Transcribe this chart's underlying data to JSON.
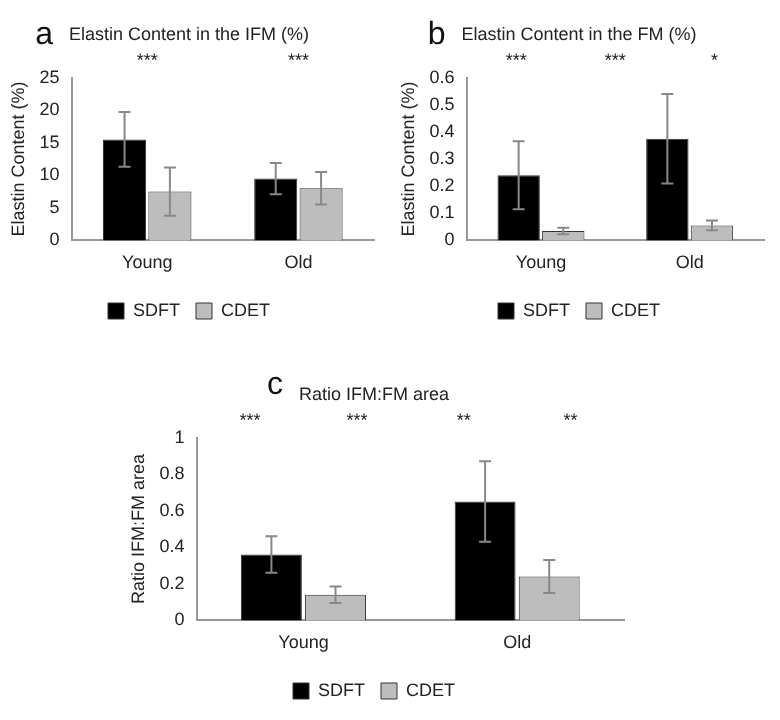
{
  "chart_data": [
    {
      "type": "bar",
      "title": "Elastin Content in the IFM (%)",
      "subtitle": "a",
      "ylabel": "Elastin Content (%)",
      "categories": [
        "Young",
        "Old"
      ],
      "series": [
        {
          "name": "SDFT",
          "color": "#000000",
          "values": [
            15.5,
            9.5
          ],
          "errors": [
            4.2,
            2.4
          ]
        },
        {
          "name": "CDET",
          "color": "#bdbdbd",
          "values": [
            7.5,
            8.0
          ],
          "errors": [
            3.7,
            2.5
          ]
        }
      ],
      "ylim": [
        0,
        25
      ],
      "yticks": [
        0,
        5,
        10,
        15,
        20,
        25
      ],
      "grid": false,
      "legend": "bottom",
      "annotations": [
        "***",
        "***"
      ]
    },
    {
      "type": "bar",
      "title": "Elastin Content in the FM (%)",
      "subtitle": "b",
      "ylabel": "Elastin Content (%)",
      "categories": [
        "Young",
        "Old"
      ],
      "series": [
        {
          "name": "SDFT",
          "color": "#000000",
          "values": [
            0.24,
            0.375
          ],
          "errors": [
            0.125,
            0.165
          ]
        },
        {
          "name": "CDET",
          "color": "#bdbdbd",
          "values": [
            0.035,
            0.055
          ],
          "errors": [
            0.012,
            0.018
          ]
        }
      ],
      "ylim": [
        0,
        0.6
      ],
      "yticks": [
        0,
        0.1,
        0.2,
        0.3,
        0.4,
        0.5,
        0.6
      ],
      "grid": false,
      "legend": "bottom",
      "annotations": [
        "***",
        "***",
        "*"
      ]
    },
    {
      "type": "bar",
      "title": "Ratio IFM:FM area",
      "subtitle": "c",
      "ylabel": "Ratio IFM:FM area",
      "categories": [
        "Young",
        "Old"
      ],
      "series": [
        {
          "name": "SDFT",
          "color": "#000000",
          "values": [
            0.36,
            0.65
          ],
          "errors": [
            0.1,
            0.22
          ]
        },
        {
          "name": "CDET",
          "color": "#bdbdbd",
          "values": [
            0.14,
            0.24
          ],
          "errors": [
            0.045,
            0.09
          ]
        }
      ],
      "ylim": [
        0,
        1
      ],
      "yticks": [
        0,
        0.2,
        0.4,
        0.6,
        0.8,
        1
      ],
      "grid": false,
      "legend": "bottom",
      "annotations": [
        "***",
        "***",
        "**",
        "**"
      ]
    }
  ]
}
